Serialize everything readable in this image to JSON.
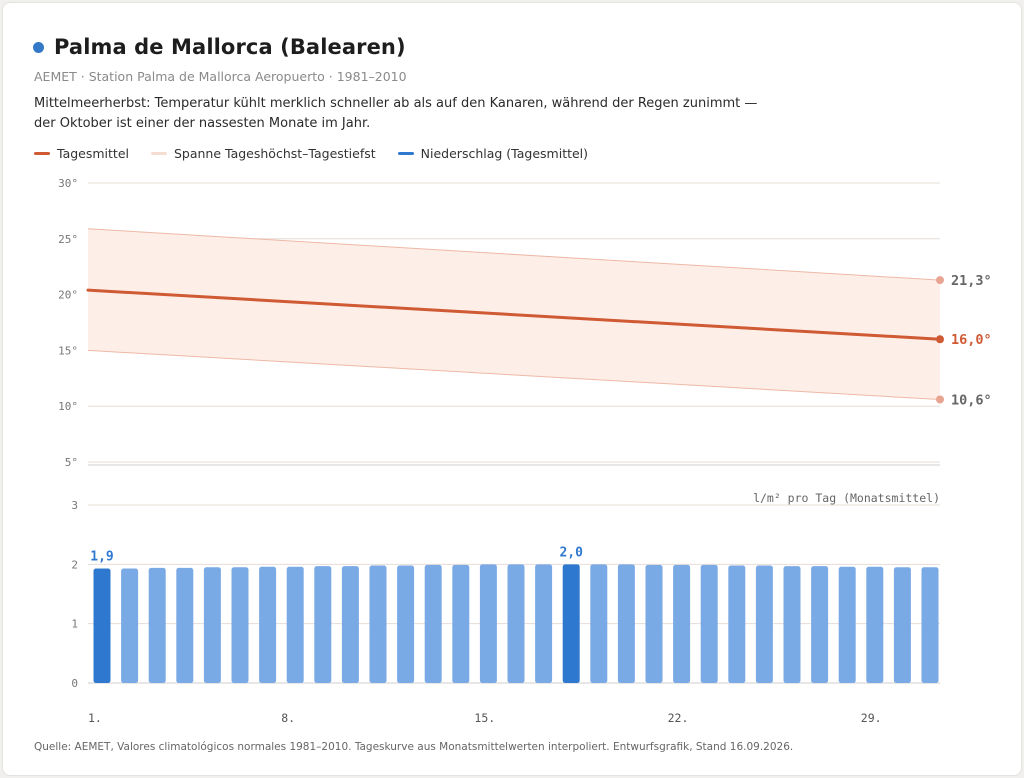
{
  "header": {
    "title": "Palma de Mallorca (Balearen)",
    "subtitle": "AEMET · Station Palma de Mallorca Aeropuerto · 1981–2010",
    "description": "Mittelmeerherbst: Temperatur kühlt merklich schneller ab als auf den Kanaren, während der Regen zunimmt — der Oktober ist einer der nassesten Monate im Jahr."
  },
  "legend": [
    {
      "label": "Tagesmittel",
      "color": "#d05a33"
    },
    {
      "label": "Spanne Tageshöchst–Tagestiefst",
      "color": "#f6ddd1"
    },
    {
      "label": "Niederschlag (Tagesmittel)",
      "color": "#2f78cf"
    }
  ],
  "colors": {
    "accent": "#3478c8",
    "mean_line": "#d05a33",
    "range_fill": "#fdeee8",
    "range_line": "#eeb8a6",
    "bar": "#7aaae5",
    "bar_highlight": "#2f78cf",
    "grid": "#e6dcd6"
  },
  "footer": "Quelle: AEMET, Valores climatológicos normales 1981–2010. Tageskurve aus Monatsmittelwerten interpoliert. Entwurfsgrafik, Stand 16.09.2026.",
  "chart_data": [
    {
      "type": "line",
      "xlabel": "",
      "ylabel": "",
      "x": [
        1,
        31
      ],
      "ylim": [
        5,
        30
      ],
      "yticks": [
        30,
        25,
        20,
        15,
        10,
        5
      ],
      "ytick_labels": [
        "30°",
        "25°",
        "20°",
        "15°",
        "10°",
        "5°"
      ],
      "grid": true,
      "series": [
        {
          "name": "Tagesmittel",
          "values": [
            20.4,
            16.0
          ],
          "end_label": "16,0°"
        },
        {
          "values": [
            25.9,
            21.3
          ],
          "end_label": "21,3°"
        },
        {
          "values": [
            15.0,
            10.6
          ],
          "end_label": "10,6°"
        }
      ]
    },
    {
      "type": "bar",
      "ylabel": "l/m² pro Tag (Monatsmittel)",
      "ylim": [
        0,
        3
      ],
      "yticks": [
        3,
        2,
        1,
        0
      ],
      "ytick_labels": [
        "3",
        "2",
        "1",
        "0"
      ],
      "categories": [
        1,
        2,
        3,
        4,
        5,
        6,
        7,
        8,
        9,
        10,
        11,
        12,
        13,
        14,
        15,
        16,
        17,
        18,
        19,
        20,
        21,
        22,
        23,
        24,
        25,
        26,
        27,
        28,
        29,
        30,
        31
      ],
      "values": [
        1.93,
        1.93,
        1.94,
        1.94,
        1.95,
        1.95,
        1.96,
        1.96,
        1.97,
        1.97,
        1.98,
        1.98,
        1.99,
        1.99,
        2.0,
        2.0,
        2.0,
        2.0,
        2.0,
        2.0,
        1.99,
        1.99,
        1.99,
        1.98,
        1.98,
        1.97,
        1.97,
        1.96,
        1.96,
        1.95,
        1.95
      ],
      "highlight": [
        {
          "index": 0,
          "label": "1,9"
        },
        {
          "index": 17,
          "label": "2,0"
        }
      ],
      "xticks": [
        1,
        8,
        15,
        22,
        29
      ],
      "xtick_labels": [
        "1.",
        "8.",
        "15.",
        "22.",
        "29."
      ],
      "grid": true
    }
  ]
}
